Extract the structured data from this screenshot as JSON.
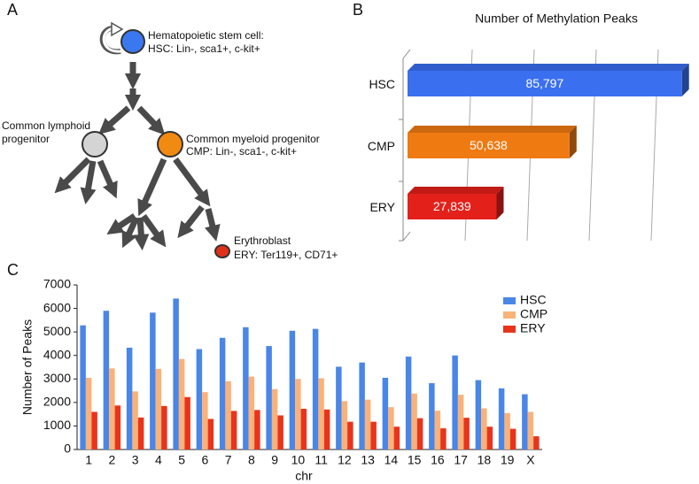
{
  "panel_labels": [
    "A",
    "B",
    "C"
  ],
  "diagram": {
    "hsc": [
      "Hematopoietic stem cell:",
      "HSC: Lin-, sca1+,  c-kit+"
    ],
    "clp": [
      "Common lymphoid",
      "progenitor"
    ],
    "cmp": [
      "Common myeloid progenitor",
      "CMP: Lin-, sca1-,  c-kit+"
    ],
    "ery": [
      "Erythroblast",
      "ERY: Ter119+, CD71+"
    ]
  },
  "chart_data": [
    {
      "type": "bar",
      "horizontal": true,
      "title": "Number of Methylation Peaks",
      "categories": [
        "HSC",
        "CMP",
        "ERY"
      ],
      "values": [
        85797,
        50638,
        27839
      ],
      "value_labels": [
        "85,797",
        "50,638",
        "27,839"
      ],
      "colors": [
        "#3a6ff0",
        "#ef7a12",
        "#e4201a"
      ],
      "xlim": [
        0,
        100000
      ]
    },
    {
      "type": "bar",
      "x_label": "chr",
      "y_label": "Number of Peaks",
      "categories": [
        "1",
        "2",
        "3",
        "4",
        "5",
        "6",
        "7",
        "8",
        "9",
        "10",
        "11",
        "12",
        "13",
        "14",
        "15",
        "16",
        "17",
        "18",
        "19",
        "X"
      ],
      "series": [
        {
          "name": "HSC",
          "color": "#4a86e8",
          "values": [
            5280,
            5900,
            4330,
            5820,
            6420,
            4270,
            4750,
            5200,
            4400,
            5050,
            5130,
            3520,
            3700,
            3050,
            3950,
            2820,
            4000,
            2950,
            2600,
            2350
          ]
        },
        {
          "name": "CMP",
          "color": "#f9b27a",
          "values": [
            3050,
            3450,
            2470,
            3430,
            3850,
            2440,
            2900,
            3100,
            2570,
            3000,
            3030,
            2060,
            2120,
            1800,
            2380,
            1650,
            2330,
            1750,
            1550,
            1600
          ]
        },
        {
          "name": "ERY",
          "color": "#e8341c",
          "values": [
            1600,
            1870,
            1360,
            1850,
            2230,
            1300,
            1640,
            1680,
            1450,
            1730,
            1700,
            1180,
            1180,
            970,
            1330,
            900,
            1350,
            970,
            880,
            560
          ]
        }
      ],
      "ylim": [
        0,
        7000
      ],
      "yticks": [
        0,
        1000,
        2000,
        3000,
        4000,
        5000,
        6000,
        7000
      ],
      "legend": "top-right"
    }
  ]
}
